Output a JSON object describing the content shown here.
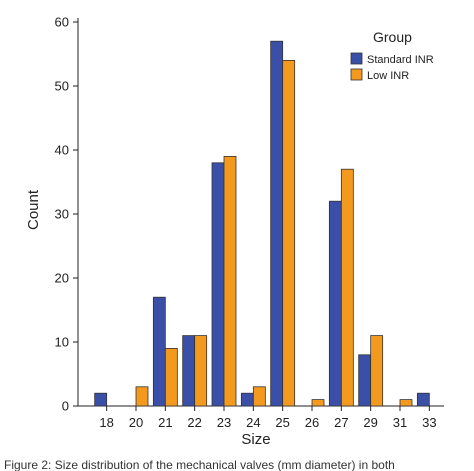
{
  "chart_data": {
    "type": "bar",
    "title": "",
    "xlabel": "Size",
    "ylabel": "Count",
    "ylim": [
      0,
      60
    ],
    "yticks": [
      0,
      10,
      20,
      30,
      40,
      50,
      60
    ],
    "categories": [
      "18",
      "20",
      "21",
      "22",
      "23",
      "24",
      "25",
      "26",
      "27",
      "29",
      "31",
      "33"
    ],
    "series": [
      {
        "name": "Standard INR",
        "color": "#3a4fa8",
        "values": [
          2,
          0,
          17,
          11,
          38,
          2,
          57,
          0,
          32,
          8,
          0,
          2
        ]
      },
      {
        "name": "Low INR",
        "color": "#f39a1e",
        "values": [
          0,
          3,
          9,
          11,
          39,
          3,
          54,
          1,
          37,
          11,
          1,
          0
        ]
      }
    ],
    "legend": {
      "title": "Group",
      "placement": "top-right"
    },
    "grid": false
  },
  "caption": "Figure 2: Size distribution of the mechanical valves (mm diameter) in both"
}
